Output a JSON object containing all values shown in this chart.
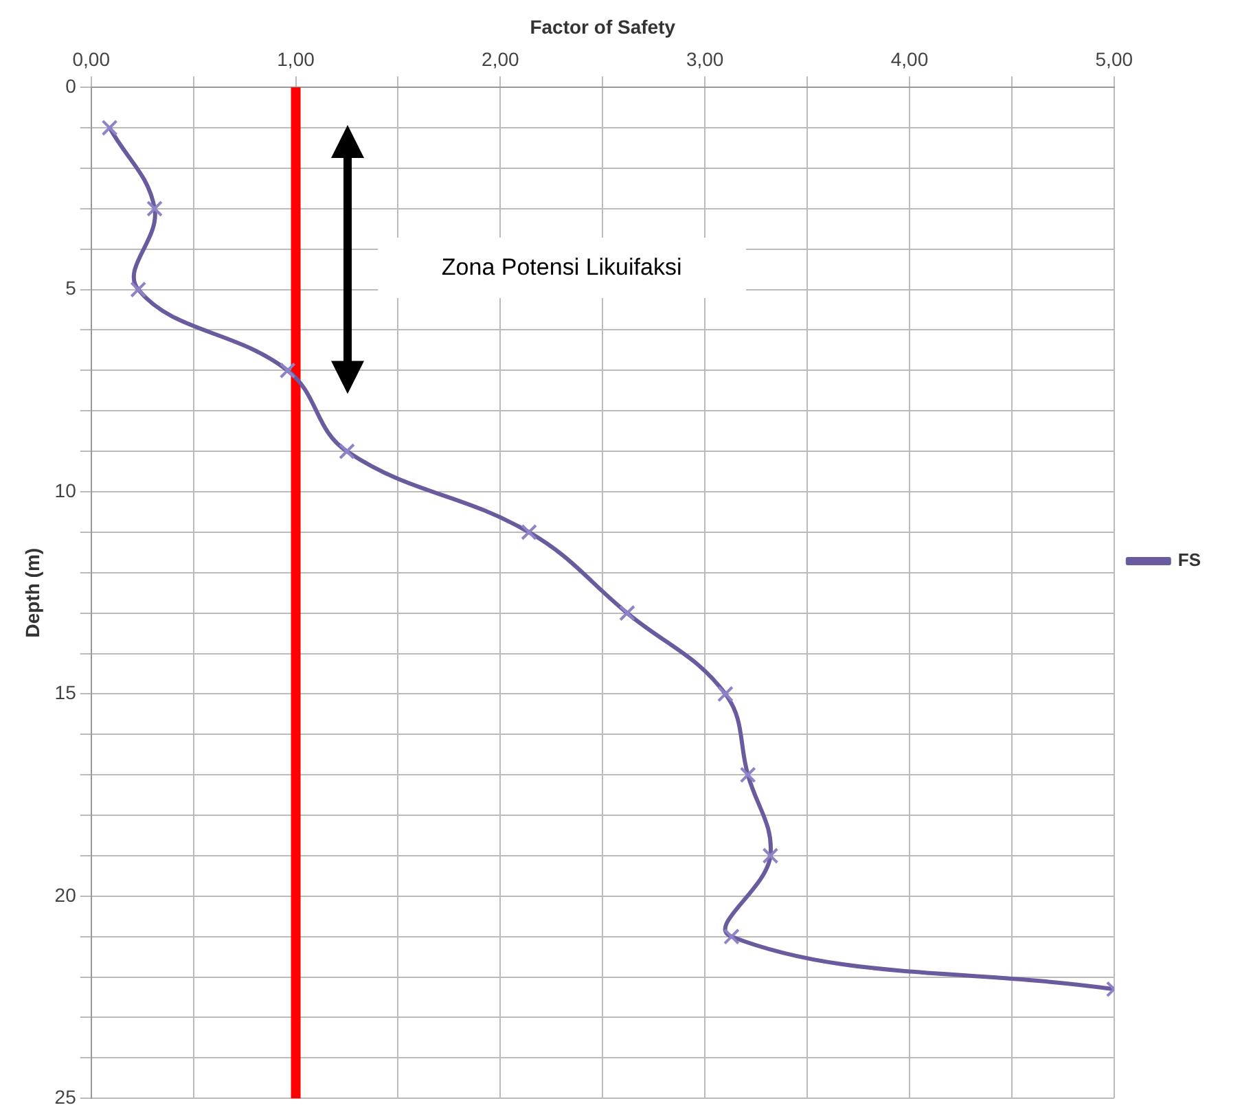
{
  "chart_data": {
    "type": "line",
    "xlabel": "Factor of Safety",
    "ylabel": "Depth (m)",
    "series": [
      {
        "name": "FS",
        "color": "#6a5b9e",
        "x": [
          0.09,
          0.31,
          0.23,
          0.96,
          1.25,
          2.14,
          2.62,
          3.1,
          3.21,
          3.32,
          3.13,
          5.0
        ],
        "values": [
          1,
          3,
          5,
          7,
          9,
          11,
          13,
          15,
          17,
          19,
          21,
          22.3
        ]
      }
    ],
    "xlim": [
      0,
      5
    ],
    "xticks": [
      {
        "value": 0,
        "label": "0,00"
      },
      {
        "value": 0.5,
        "label": null
      },
      {
        "value": 1,
        "label": "1,00"
      },
      {
        "value": 1.5,
        "label": null
      },
      {
        "value": 2,
        "label": "2,00"
      },
      {
        "value": 2.5,
        "label": null
      },
      {
        "value": 3,
        "label": "3,00"
      },
      {
        "value": 3.5,
        "label": null
      },
      {
        "value": 4,
        "label": "4,00"
      },
      {
        "value": 4.5,
        "label": null
      },
      {
        "value": 5,
        "label": "5,00"
      }
    ],
    "ylim": [
      25,
      0
    ],
    "yticks": [
      0,
      {
        "value": 1,
        "label": null
      },
      {
        "value": 2,
        "label": null
      },
      {
        "value": 3,
        "label": null
      },
      {
        "value": 4,
        "label": null
      },
      5,
      {
        "value": 6,
        "label": null
      },
      {
        "value": 7,
        "label": null
      },
      {
        "value": 8,
        "label": null
      },
      {
        "value": 9,
        "label": null
      },
      10,
      {
        "value": 11,
        "label": null
      },
      {
        "value": 12,
        "label": null
      },
      {
        "value": 13,
        "label": null
      },
      {
        "value": 14,
        "label": null
      },
      15,
      {
        "value": 16,
        "label": null
      },
      {
        "value": 17,
        "label": null
      },
      {
        "value": 18,
        "label": null
      },
      {
        "value": 19,
        "label": null
      },
      20,
      {
        "value": 21,
        "label": null
      },
      {
        "value": 22,
        "label": null
      },
      {
        "value": 23,
        "label": null
      },
      {
        "value": 24,
        "label": null
      },
      25
    ],
    "ref_lines": [
      {
        "axis": "x",
        "value": 1,
        "color": "#ff0000"
      }
    ],
    "annotations": [
      "Zona Potensi Likuifaksi"
    ],
    "grid": true,
    "legend": "right",
    "marker": "cross",
    "line_style": "solid"
  }
}
